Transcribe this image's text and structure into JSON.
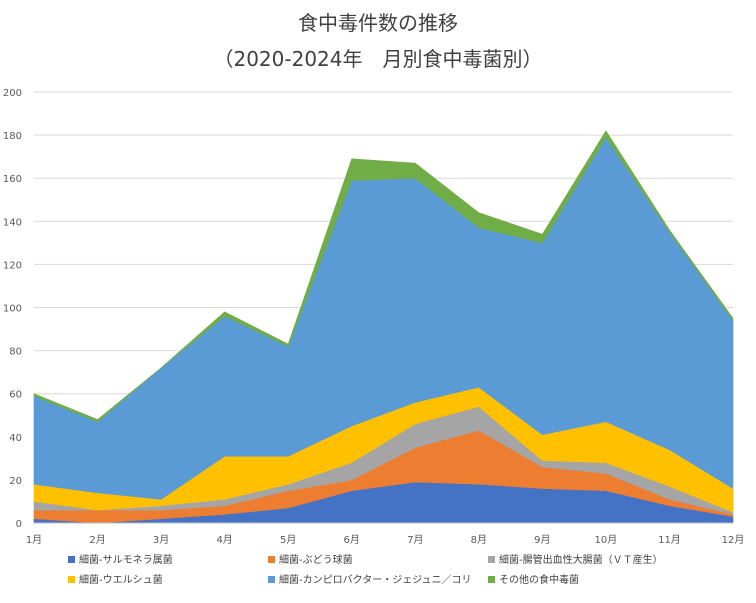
{
  "chart_data": {
    "type": "area",
    "stacked": true,
    "title": "食中毒件数の推移",
    "subtitle": "（2020-2024年　月別食中毒菌別）",
    "xlabel": "",
    "ylabel": "",
    "categories": [
      "1月",
      "2月",
      "3月",
      "4月",
      "5月",
      "6月",
      "7月",
      "8月",
      "9月",
      "10月",
      "11月",
      "12月"
    ],
    "ylim": [
      0,
      200
    ],
    "yticks": [
      0,
      20,
      40,
      60,
      80,
      100,
      120,
      140,
      160,
      180,
      200
    ],
    "grid": true,
    "legend_position": "bottom",
    "series": [
      {
        "name": "細菌-サルモネラ属菌",
        "color": "#4472C4",
        "values": [
          2,
          0,
          2,
          4,
          7,
          15,
          19,
          18,
          16,
          15,
          8,
          3
        ]
      },
      {
        "name": "細菌-ぶどう球菌",
        "color": "#ED7D31",
        "values": [
          4,
          6,
          4,
          4,
          8,
          5,
          16,
          25,
          10,
          8,
          3,
          1
        ]
      },
      {
        "name": "細菌-腸管出血性大腸菌（ＶＴ産生）",
        "color": "#A5A5A5",
        "values": [
          4,
          0,
          2,
          3,
          3,
          8,
          11,
          11,
          3,
          5,
          6,
          1
        ]
      },
      {
        "name": "細菌-ウエルシュ菌",
        "color": "#FFC000",
        "values": [
          8,
          8,
          3,
          20,
          13,
          17,
          10,
          9,
          12,
          19,
          17,
          11
        ]
      },
      {
        "name": "細菌-カンピロバクター・ジェジュニ／コリ",
        "color": "#5B9BD5",
        "values": [
          41,
          33,
          61,
          65,
          51,
          114,
          104,
          74,
          89,
          132,
          101,
          78
        ]
      },
      {
        "name": "その他の食中毒菌",
        "color": "#70AD47",
        "values": [
          1,
          1,
          0,
          2,
          1,
          10,
          7,
          7,
          4,
          3,
          1,
          1
        ]
      }
    ]
  }
}
